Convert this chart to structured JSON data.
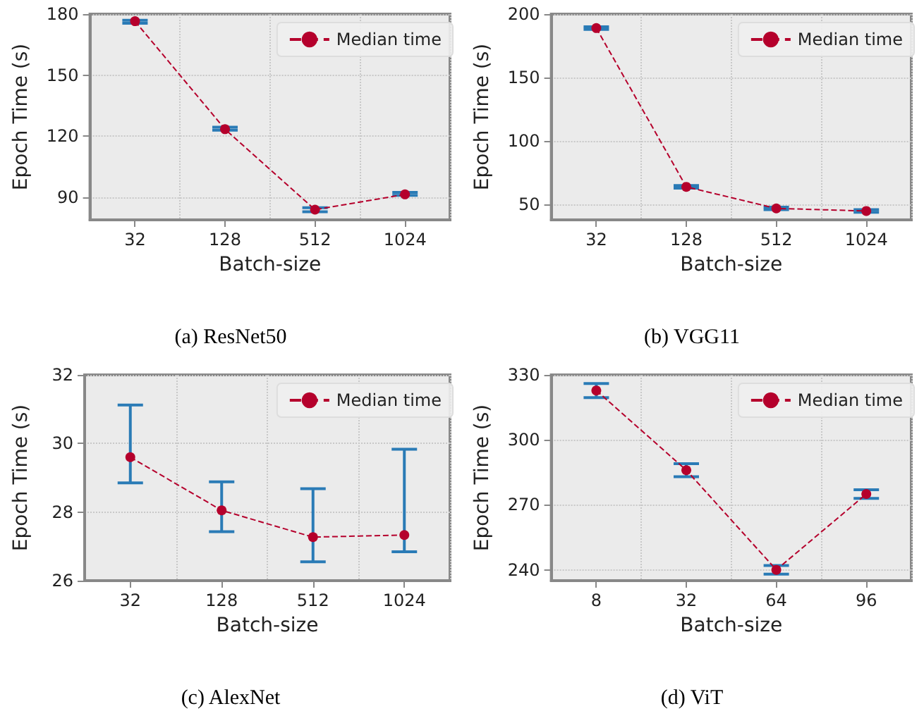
{
  "chart_data": [
    {
      "type": "line",
      "title": "(a) ResNet50",
      "xlabel": "Batch-size",
      "ylabel": "Epoch Time (s)",
      "categories": [
        "32",
        "128",
        "512",
        "1024"
      ],
      "series": [
        {
          "name": "Median time",
          "color": "#b5002c",
          "values": [
            176.5,
            123.5,
            84,
            91.5
          ],
          "errors": [
            [
              175.5,
              177
            ],
            [
              123,
              124.5
            ],
            [
              83,
              85
            ],
            [
              91,
              92.5
            ]
          ]
        }
      ],
      "ylim": [
        79,
        180
      ],
      "yticks": [
        90,
        120,
        150,
        180
      ],
      "grid": true,
      "legend": "top right",
      "marker": "circle",
      "line_style": "dashed"
    },
    {
      "type": "line",
      "title": "(b) VGG11",
      "xlabel": "Batch-size",
      "ylabel": "Epoch Time (s)",
      "categories": [
        "32",
        "128",
        "512",
        "1024"
      ],
      "series": [
        {
          "name": "Median time",
          "color": "#b5002c",
          "values": [
            189,
            64,
            47,
            45
          ],
          "errors": [
            [
              188,
              190
            ],
            [
              63,
              65
            ],
            [
              46,
              48
            ],
            [
              44,
              46
            ]
          ]
        }
      ],
      "ylim": [
        38,
        200
      ],
      "yticks": [
        50,
        100,
        150,
        200
      ],
      "grid": true,
      "legend": "top right",
      "marker": "circle",
      "line_style": "dashed"
    },
    {
      "type": "line",
      "title": "(c) AlexNet",
      "xlabel": "Batch-size",
      "ylabel": "Epoch Time (s)",
      "categories": [
        "32",
        "128",
        "512",
        "1024"
      ],
      "series": [
        {
          "name": "Median time",
          "color": "#b5002c",
          "values": [
            29.6,
            28.05,
            27.27,
            27.33
          ],
          "errors": [
            [
              28.85,
              31.12
            ],
            [
              27.43,
              28.88
            ],
            [
              26.55,
              28.68
            ],
            [
              26.84,
              29.83
            ]
          ]
        }
      ],
      "ylim": [
        26,
        32
      ],
      "yticks": [
        26,
        28,
        30,
        32
      ],
      "grid": true,
      "legend": "top right",
      "marker": "circle",
      "line_style": "dashed"
    },
    {
      "type": "line",
      "title": "(d) ViT",
      "xlabel": "Batch-size",
      "ylabel": "Epoch Time (s)",
      "categories": [
        "8",
        "32",
        "64",
        "96"
      ],
      "series": [
        {
          "name": "Median time",
          "color": "#b5002c",
          "values": [
            322.8,
            286,
            240,
            275
          ],
          "errors": [
            [
              319.5,
              326
            ],
            [
              283,
              289
            ],
            [
              238,
              242
            ],
            [
              273,
              277
            ]
          ]
        }
      ],
      "ylim": [
        235,
        330
      ],
      "yticks": [
        240,
        270,
        300,
        330
      ],
      "grid": true,
      "legend": "top right",
      "marker": "circle",
      "line_style": "dashed"
    }
  ]
}
